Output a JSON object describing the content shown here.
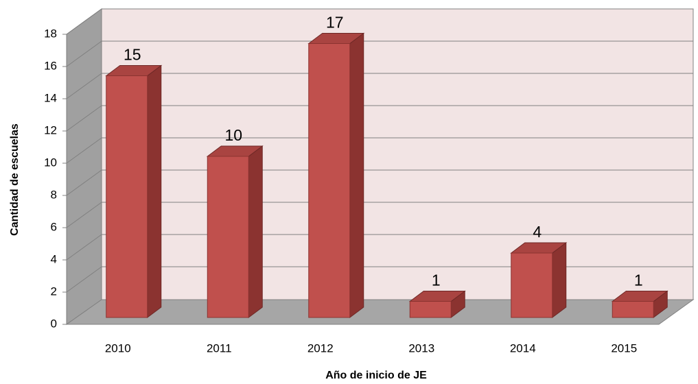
{
  "chart_data": {
    "type": "bar",
    "categories": [
      "2010",
      "2011",
      "2012",
      "2013",
      "2014",
      "2015"
    ],
    "values": [
      15,
      10,
      17,
      1,
      4,
      1
    ],
    "color": "#c0504d",
    "ylim": [
      0,
      18
    ],
    "yticks": [
      0,
      2,
      4,
      6,
      8,
      10,
      12,
      14,
      16,
      18
    ],
    "grid": true,
    "xlabel": "Año de inicio de JE",
    "ylabel": "Cantidad de escuelas"
  }
}
